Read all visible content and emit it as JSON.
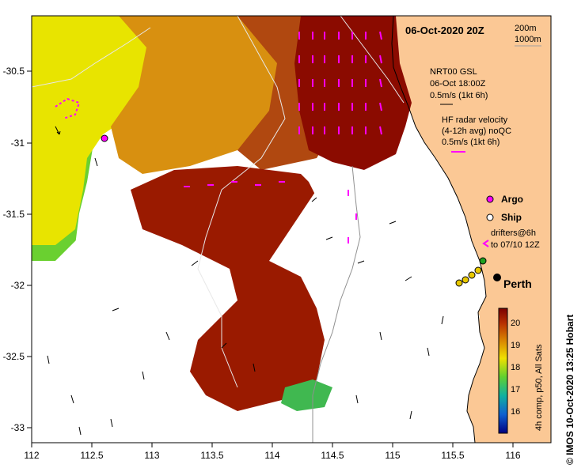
{
  "title": "06-Oct-2020 20Z",
  "depth_contours": [
    "200m",
    "1000m"
  ],
  "legend": {
    "model_name": "NRT00 GSL",
    "model_time": "06-Oct 18:00Z",
    "model_scale": "0.5m/s (1kt 6h)",
    "radar_line1": "HF radar velocity",
    "radar_line2": "(4-12h avg) noQC",
    "radar_scale": "0.5m/s (1kt 6h)",
    "argo": "Argo",
    "ship": "Ship",
    "drifters_line1": "drifters@6h",
    "drifters_line2": "to 07/10 12Z"
  },
  "city": "Perth",
  "credit": "© IMOS 10-Oct-2020 13:25 Hobart",
  "colorbar": {
    "label": "4h comp, p50, All Sats",
    "ticks": [
      "20",
      "19",
      "18",
      "17",
      "16"
    ]
  },
  "axes": {
    "x_ticks": [
      "112",
      "112.5",
      "113",
      "113.5",
      "114",
      "114.5",
      "115",
      "115.5",
      "116"
    ],
    "y_ticks": [
      "-30.5",
      "-31",
      "-31.5",
      "-32",
      "-32.5",
      "-33"
    ]
  },
  "colors": {
    "land": "#fbc895",
    "radar_arrow": "#ff00ff",
    "sst_hot": "#8b0b00",
    "sst_mid": "#c8780a",
    "sst_warm": "#f0f000",
    "sst_cool": "#3cc83c"
  }
}
